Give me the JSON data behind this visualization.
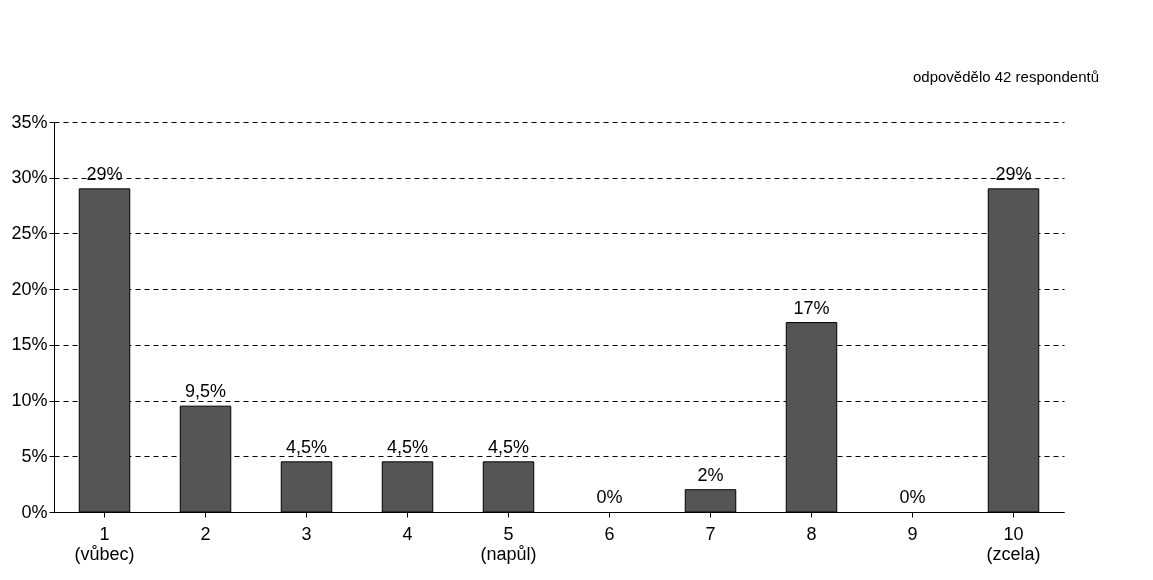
{
  "chart_data": {
    "type": "bar",
    "categories": [
      "1\n(vůbec)",
      "2",
      "3",
      "4",
      "5\n(napůl)",
      "6",
      "7",
      "8",
      "9",
      "10\n(zcela)"
    ],
    "values": [
      29,
      9.5,
      4.5,
      4.5,
      4.5,
      0,
      2,
      17,
      0,
      29
    ],
    "value_labels": [
      "29%",
      "9,5%",
      "4,5%",
      "4,5%",
      "4,5%",
      "0%",
      "2%",
      "17%",
      "0%",
      "29%"
    ],
    "color": "#555555",
    "ylim": [
      0,
      35
    ],
    "yticks": [
      {
        "value": 0,
        "label": "0%"
      },
      {
        "value": 5,
        "label": "5%"
      },
      {
        "value": 10,
        "label": "10%"
      },
      {
        "value": 15,
        "label": "15%"
      },
      {
        "value": 20,
        "label": "20%"
      },
      {
        "value": 25,
        "label": "25%"
      },
      {
        "value": 30,
        "label": "30%"
      },
      {
        "value": 35,
        "label": "35%"
      }
    ],
    "grid": "y",
    "annotations": [
      "odpovědělo 42 respondentů"
    ]
  }
}
